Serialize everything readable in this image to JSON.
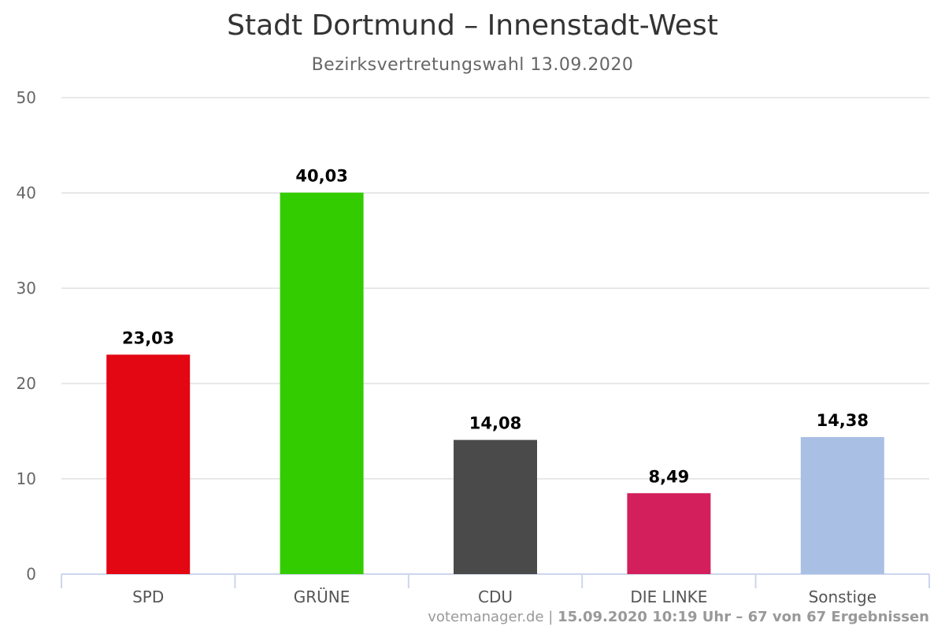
{
  "chart_data": {
    "type": "bar",
    "title": "Stadt Dortmund – Innenstadt-West",
    "subtitle": "Bezirksvertretungswahl 13.09.2020",
    "categories": [
      "SPD",
      "GRÜNE",
      "CDU",
      "DIE LINKE",
      "Sonstige"
    ],
    "values": [
      23.03,
      40.03,
      14.08,
      8.49,
      14.38
    ],
    "value_labels": [
      "23,03",
      "40,03",
      "14,08",
      "8,49",
      "14,38"
    ],
    "colors": [
      "#e30613",
      "#33cc00",
      "#4a4a4a",
      "#d31f5c",
      "#aabfe4"
    ],
    "ylim": [
      0,
      50
    ],
    "yticks": [
      0,
      10,
      20,
      30,
      40,
      50
    ],
    "grid": true
  },
  "credit": {
    "site": "votemanager.de",
    "sep": " | ",
    "info": "15.09.2020 10:19 Uhr – 67 von 67 Ergebnissen"
  }
}
